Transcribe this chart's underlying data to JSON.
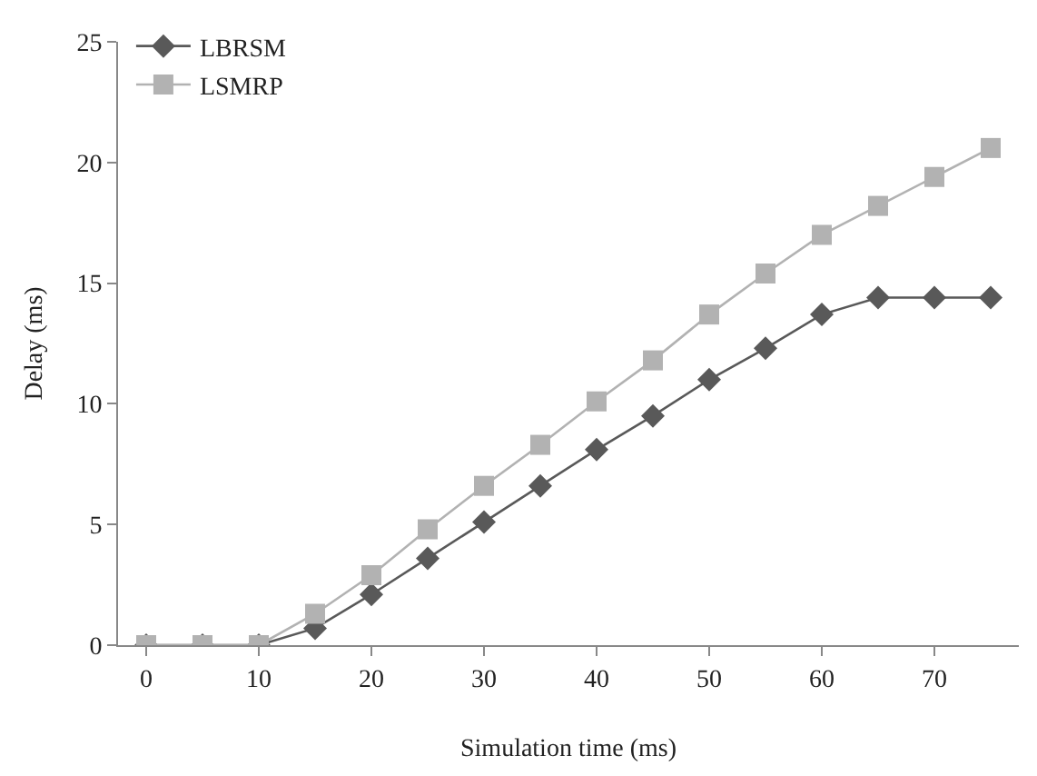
{
  "chart_data": {
    "type": "line",
    "xlabel": "Simulation time (ms)",
    "ylabel": "Delay (ms)",
    "x": [
      0,
      5,
      10,
      15,
      20,
      25,
      30,
      35,
      40,
      45,
      50,
      55,
      60,
      65,
      70,
      75
    ],
    "series": [
      {
        "name": "LBRSM",
        "color": "#595959",
        "marker": "diamond",
        "values": [
          0,
          0,
          0,
          0.7,
          2.1,
          3.6,
          5.1,
          6.6,
          8.1,
          9.5,
          11.0,
          12.3,
          13.7,
          14.4,
          14.4,
          14.4
        ]
      },
      {
        "name": "LSMRP",
        "color": "#b2b2b2",
        "marker": "square",
        "values": [
          0,
          0,
          0,
          1.3,
          2.9,
          4.8,
          6.6,
          8.3,
          10.1,
          11.8,
          13.7,
          15.4,
          17.0,
          18.2,
          19.4,
          20.6
        ]
      }
    ],
    "xlim": [
      -2.5,
      77.5
    ],
    "xticks": [
      0,
      10,
      20,
      30,
      40,
      50,
      60,
      70
    ],
    "ylim": [
      0,
      25
    ],
    "yticks": [
      0,
      5,
      10,
      15,
      20,
      25
    ],
    "legend": "top left"
  }
}
